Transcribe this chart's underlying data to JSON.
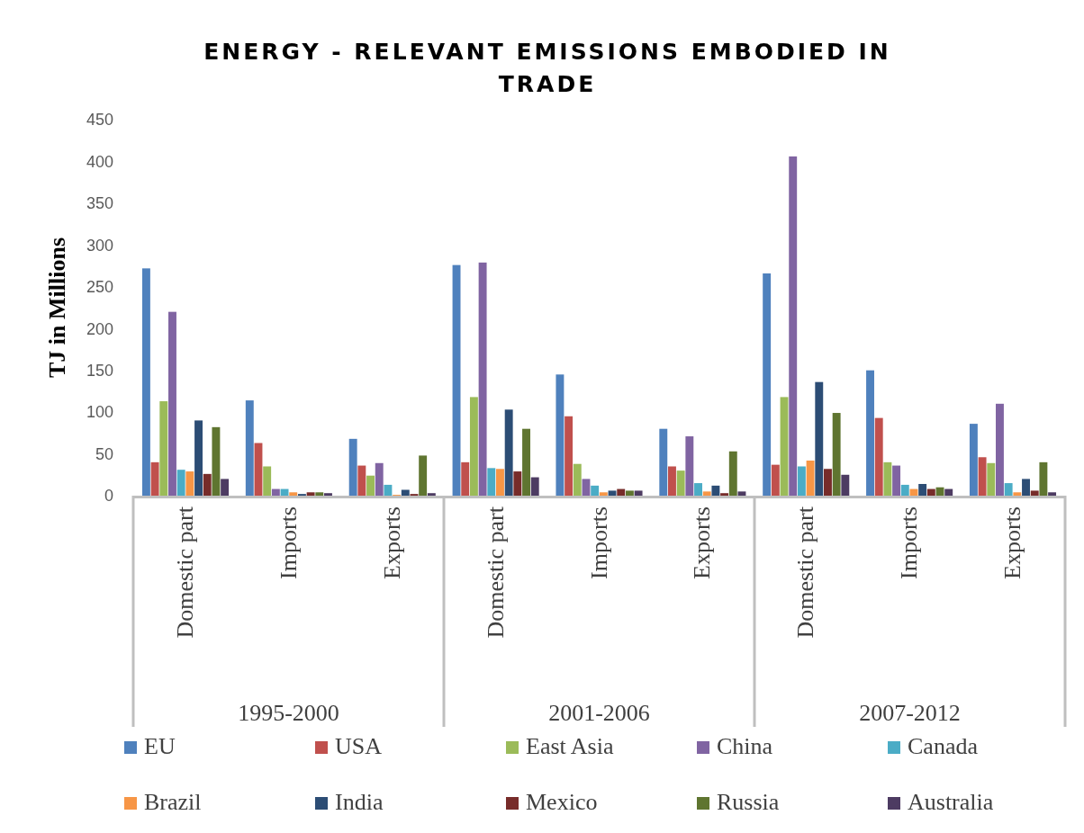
{
  "chart_data": {
    "type": "bar",
    "title": "ENERGY - RELEVANT EMISSIONS EMBODIED IN TRADE",
    "ylabel": "TJ in Millions",
    "categories": [
      "Domestic part",
      "Imports",
      "Exports",
      "Domestic part",
      "Imports",
      "Exports",
      "Domestic part",
      "Imports",
      "Exports"
    ],
    "annotations": [
      "1995-2000",
      "2001-2006",
      "2007-2012"
    ],
    "series": [
      {
        "name": "EU",
        "color": "#4f81bd",
        "values": [
          272,
          114,
          68,
          276,
          145,
          80,
          266,
          150,
          86
        ]
      },
      {
        "name": "USA",
        "color": "#c0504d",
        "values": [
          40,
          63,
          36,
          40,
          95,
          35,
          37,
          93,
          46
        ]
      },
      {
        "name": "East Asia",
        "color": "#9bbb59",
        "values": [
          113,
          35,
          24,
          118,
          38,
          30,
          118,
          40,
          39
        ]
      },
      {
        "name": "China",
        "color": "#8064a2",
        "values": [
          220,
          8,
          39,
          279,
          20,
          71,
          406,
          36,
          110
        ]
      },
      {
        "name": "Canada",
        "color": "#4bacc6",
        "values": [
          31,
          8,
          13,
          33,
          12,
          15,
          35,
          13,
          15
        ]
      },
      {
        "name": "Brazil",
        "color": "#f79646",
        "values": [
          29,
          4,
          1,
          32,
          4,
          5,
          42,
          8,
          4
        ]
      },
      {
        "name": "India",
        "color": "#2c4d75",
        "values": [
          90,
          2,
          7,
          103,
          6,
          12,
          136,
          14,
          20
        ]
      },
      {
        "name": "Mexico",
        "color": "#772c2a",
        "values": [
          26,
          4,
          2,
          29,
          8,
          3,
          32,
          8,
          6
        ]
      },
      {
        "name": "Russia",
        "color": "#5f7530",
        "values": [
          82,
          4,
          48,
          80,
          6,
          53,
          99,
          10,
          40
        ]
      },
      {
        "name": "Australia",
        "color": "#4d3b62",
        "values": [
          20,
          3,
          3,
          22,
          6,
          5,
          25,
          8,
          4
        ]
      }
    ],
    "ylim": [
      0,
      450
    ],
    "yticks": [
      0,
      50,
      100,
      150,
      200,
      250,
      300,
      350,
      400,
      450
    ],
    "grid": false,
    "legend": "bottom"
  }
}
